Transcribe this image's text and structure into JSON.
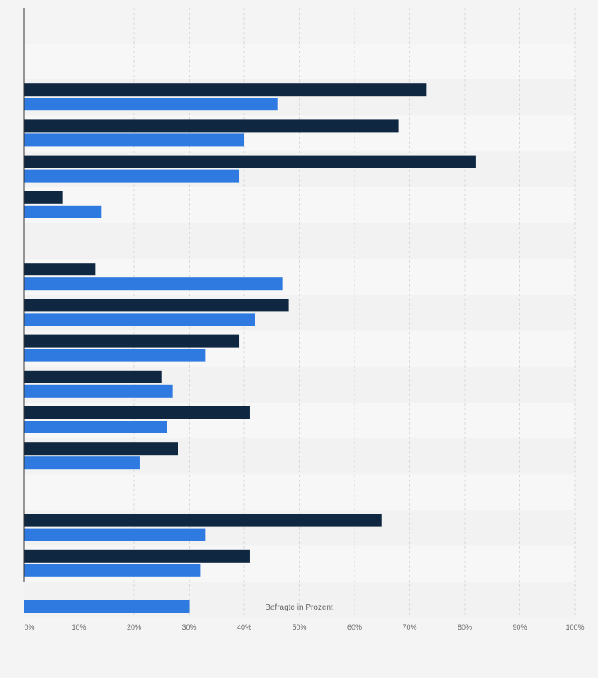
{
  "chart_data": {
    "type": "bar",
    "orientation": "horizontal",
    "xlabel": "Befragte in Prozent",
    "xlim": [
      0,
      100
    ],
    "x_ticks": [
      "0%",
      "10%",
      "20%",
      "30%",
      "40%",
      "50%",
      "60%",
      "70%",
      "80%",
      "90%",
      "100%"
    ],
    "grid": true,
    "categories": [
      "",
      "",
      "",
      "",
      "",
      "",
      "",
      "",
      "",
      "",
      "",
      "",
      "",
      "",
      "",
      ""
    ],
    "series": [
      {
        "color": "#0f2741",
        "values": [
          null,
          73,
          68,
          82,
          7,
          null,
          13,
          48,
          39,
          25,
          41,
          28,
          null,
          65,
          41,
          null
        ]
      },
      {
        "color": "#2f7ae0",
        "values": [
          null,
          46,
          40,
          39,
          14,
          null,
          47,
          42,
          33,
          27,
          26,
          21,
          null,
          33,
          32,
          30
        ]
      }
    ]
  }
}
